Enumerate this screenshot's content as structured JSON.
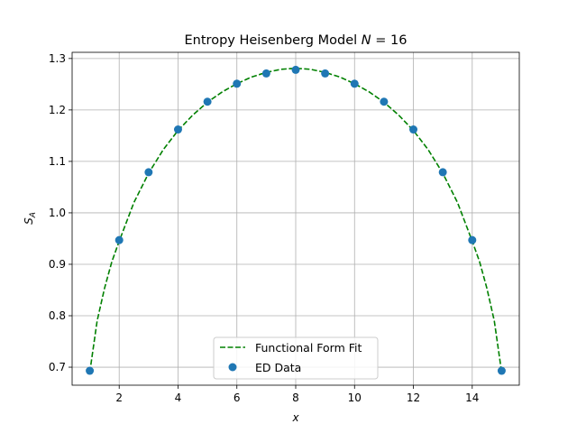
{
  "chart_data": {
    "type": "scatter",
    "title": "Entropy Heisenberg Model  N = 16",
    "xlabel": "x",
    "ylabel": "S_A",
    "xlim": [
      0.4,
      15.6
    ],
    "ylim": [
      0.665,
      1.312
    ],
    "xticks": [
      2,
      4,
      6,
      8,
      10,
      12,
      14
    ],
    "yticks": [
      0.7,
      0.8,
      0.9,
      1.0,
      1.1,
      1.2,
      1.3
    ],
    "grid": true,
    "legend_position": "bottom-center",
    "series": [
      {
        "name": "Functional Form Fit",
        "kind": "line",
        "style": "dashed",
        "color": "#008000",
        "x": [
          1,
          1.25,
          1.5,
          1.75,
          2,
          2.5,
          3,
          3.5,
          4,
          4.5,
          5,
          5.5,
          6,
          6.5,
          7,
          7.5,
          8,
          8.5,
          9,
          9.5,
          10,
          10.5,
          11,
          11.5,
          12,
          12.5,
          13,
          13.5,
          14,
          14.25,
          14.5,
          14.75,
          15
        ],
        "y": [
          0.69,
          0.79,
          0.853,
          0.905,
          0.945,
          1.02,
          1.077,
          1.123,
          1.16,
          1.19,
          1.215,
          1.235,
          1.251,
          1.264,
          1.273,
          1.279,
          1.281,
          1.279,
          1.273,
          1.264,
          1.251,
          1.235,
          1.215,
          1.19,
          1.16,
          1.123,
          1.077,
          1.02,
          0.945,
          0.905,
          0.853,
          0.79,
          0.69
        ]
      },
      {
        "name": "ED Data",
        "kind": "scatter",
        "color": "#1f77b4",
        "x": [
          1,
          2,
          3,
          4,
          5,
          6,
          7,
          8,
          9,
          10,
          11,
          12,
          13,
          14,
          15
        ],
        "y": [
          0.693,
          0.947,
          1.079,
          1.162,
          1.216,
          1.251,
          1.271,
          1.278,
          1.271,
          1.251,
          1.216,
          1.162,
          1.079,
          0.947,
          0.693
        ]
      }
    ]
  }
}
